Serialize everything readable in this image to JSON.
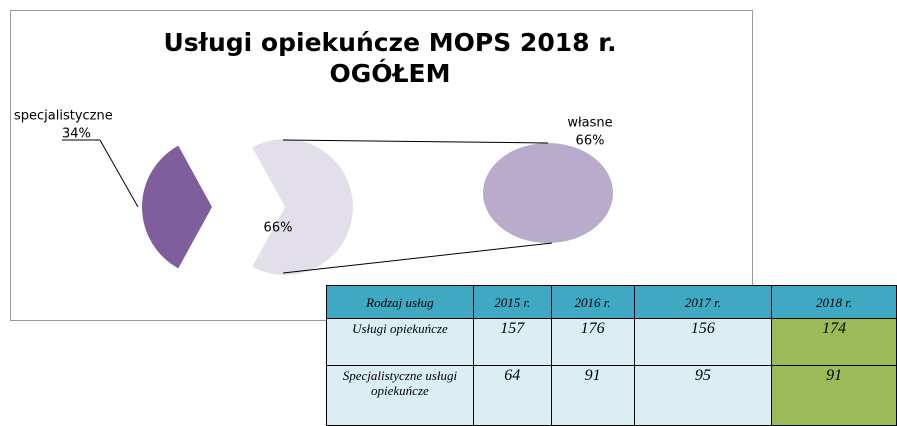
{
  "chart_data": {
    "type": "pie-of-pie",
    "title": [
      "Usługi opiekuńcze MOPS 2018 r.",
      "OGÓŁEM"
    ],
    "categories": [
      "specjalistyczne",
      "własne"
    ],
    "values": [
      34,
      66
    ],
    "value_labels": [
      "34%",
      "66%"
    ],
    "colors": [
      "#7e5e9c",
      "#b8abcb"
    ],
    "other_color": "#e2dfea"
  },
  "table": {
    "header": [
      "Rodzaj usług",
      "2015 r.",
      "2016 r.",
      "2017 r.",
      "2018 r."
    ],
    "rows": [
      [
        "Usługi opiekuńcze",
        "157",
        "176",
        "156",
        "174"
      ],
      [
        "Specjalistyczne usługi opiekuńcze",
        "64",
        "91",
        "95",
        "91"
      ]
    ]
  }
}
